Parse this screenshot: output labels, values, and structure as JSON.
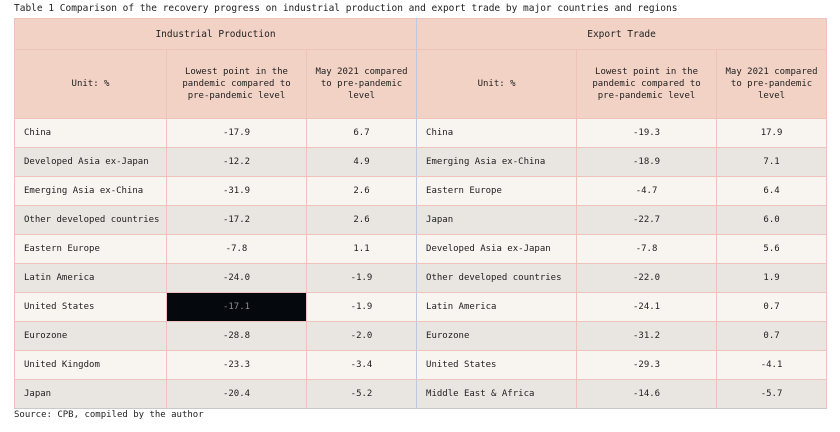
{
  "caption": "Table 1  Comparison of the recovery progress on industrial production and export trade by major countries and regions",
  "source": "Source: CPB, compiled by the author",
  "groups": {
    "industrial": "Industrial Production",
    "export": "Export Trade"
  },
  "subheaders": {
    "unit": "Unit: %",
    "lowest": "Lowest point in the pandemic compared to pre-pandemic level",
    "may_ip": "May 2021 compared to pre-pandemic level",
    "lowest_ex": "Lowest point in the pandemic compared to pre-pandemic level",
    "may_ex": "May 2021 compared to pre-pandemic level"
  },
  "rows": [
    {
      "ip_name": "China",
      "ip_low": "-17.9",
      "ip_may": "6.7",
      "ex_name": "China",
      "ex_low": "-19.3",
      "ex_may": "17.9"
    },
    {
      "ip_name": "Developed Asia ex-Japan",
      "ip_low": "-12.2",
      "ip_may": "4.9",
      "ex_name": "Emerging Asia ex-China",
      "ex_low": "-18.9",
      "ex_may": "7.1"
    },
    {
      "ip_name": "Emerging Asia ex-China",
      "ip_low": "-31.9",
      "ip_may": "2.6",
      "ex_name": "Eastern Europe",
      "ex_low": "-4.7",
      "ex_may": "6.4"
    },
    {
      "ip_name": "Other developed countries",
      "ip_low": "-17.2",
      "ip_may": "2.6",
      "ex_name": "Japan",
      "ex_low": "-22.7",
      "ex_may": "6.0"
    },
    {
      "ip_name": "Eastern Europe",
      "ip_low": "-7.8",
      "ip_may": "1.1",
      "ex_name": "Developed Asia ex-Japan",
      "ex_low": "-7.8",
      "ex_may": "5.6"
    },
    {
      "ip_name": "Latin America",
      "ip_low": "-24.0",
      "ip_may": "-1.9",
      "ex_name": "Other developed countries",
      "ex_low": "-22.0",
      "ex_may": "1.9"
    },
    {
      "ip_name": "United States",
      "ip_low": "-17.1",
      "ip_may": "-1.9",
      "ex_name": "Latin America",
      "ex_low": "-24.1",
      "ex_may": "0.7"
    },
    {
      "ip_name": "Eurozone",
      "ip_low": "-28.8",
      "ip_may": "-2.0",
      "ex_name": "Eurozone",
      "ex_low": "-31.2",
      "ex_may": "0.7"
    },
    {
      "ip_name": "United Kingdom",
      "ip_low": "-23.3",
      "ip_may": "-3.4",
      "ex_name": "United States",
      "ex_low": "-29.3",
      "ex_may": "-4.1"
    },
    {
      "ip_name": "Japan",
      "ip_low": "-20.4",
      "ip_may": "-5.2",
      "ex_name": "Middle East & Africa",
      "ex_low": "-14.6",
      "ex_may": "-5.7"
    }
  ],
  "colors": {
    "header_bg": "#f2d2c5",
    "row_light": "#f8f4f0",
    "row_dark": "#e9e5e0",
    "accent_line": "#d97f74",
    "redacted_cell": "#05080d"
  }
}
